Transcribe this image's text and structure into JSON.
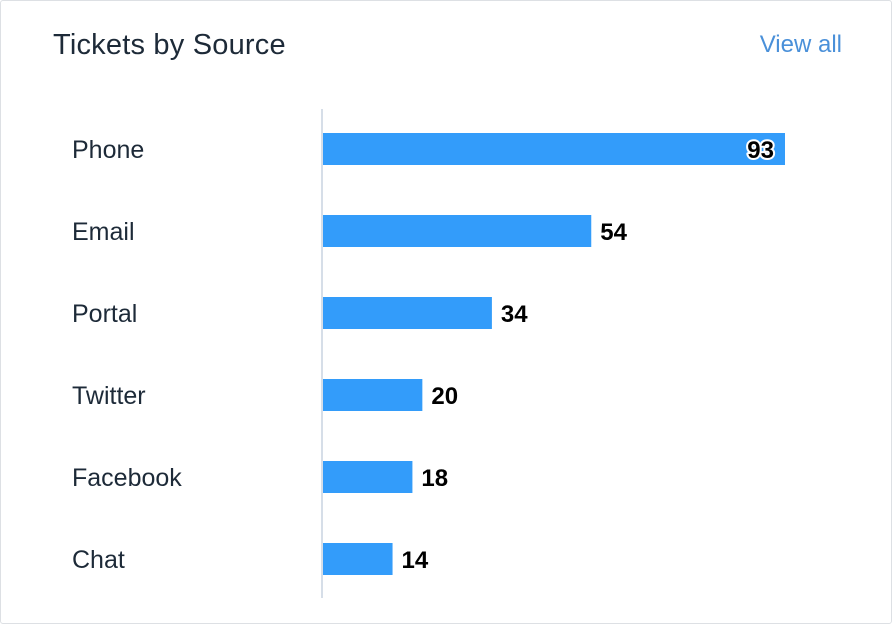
{
  "card": {
    "title": "Tickets by Source",
    "view_all_label": "View all"
  },
  "colors": {
    "bar": "#339cfa",
    "axis": "#c9d3e0",
    "title": "#1d2a38",
    "link": "#4a90d9"
  },
  "chart_data": {
    "type": "bar",
    "orientation": "horizontal",
    "categories": [
      "Phone",
      "Email",
      "Portal",
      "Twitter",
      "Facebook",
      "Chat"
    ],
    "values": [
      93,
      54,
      34,
      20,
      18,
      14
    ],
    "title": "Tickets by Source",
    "xlabel": "",
    "ylabel": "",
    "xlim": [
      0,
      100
    ],
    "grid": false,
    "data_labels": true
  }
}
